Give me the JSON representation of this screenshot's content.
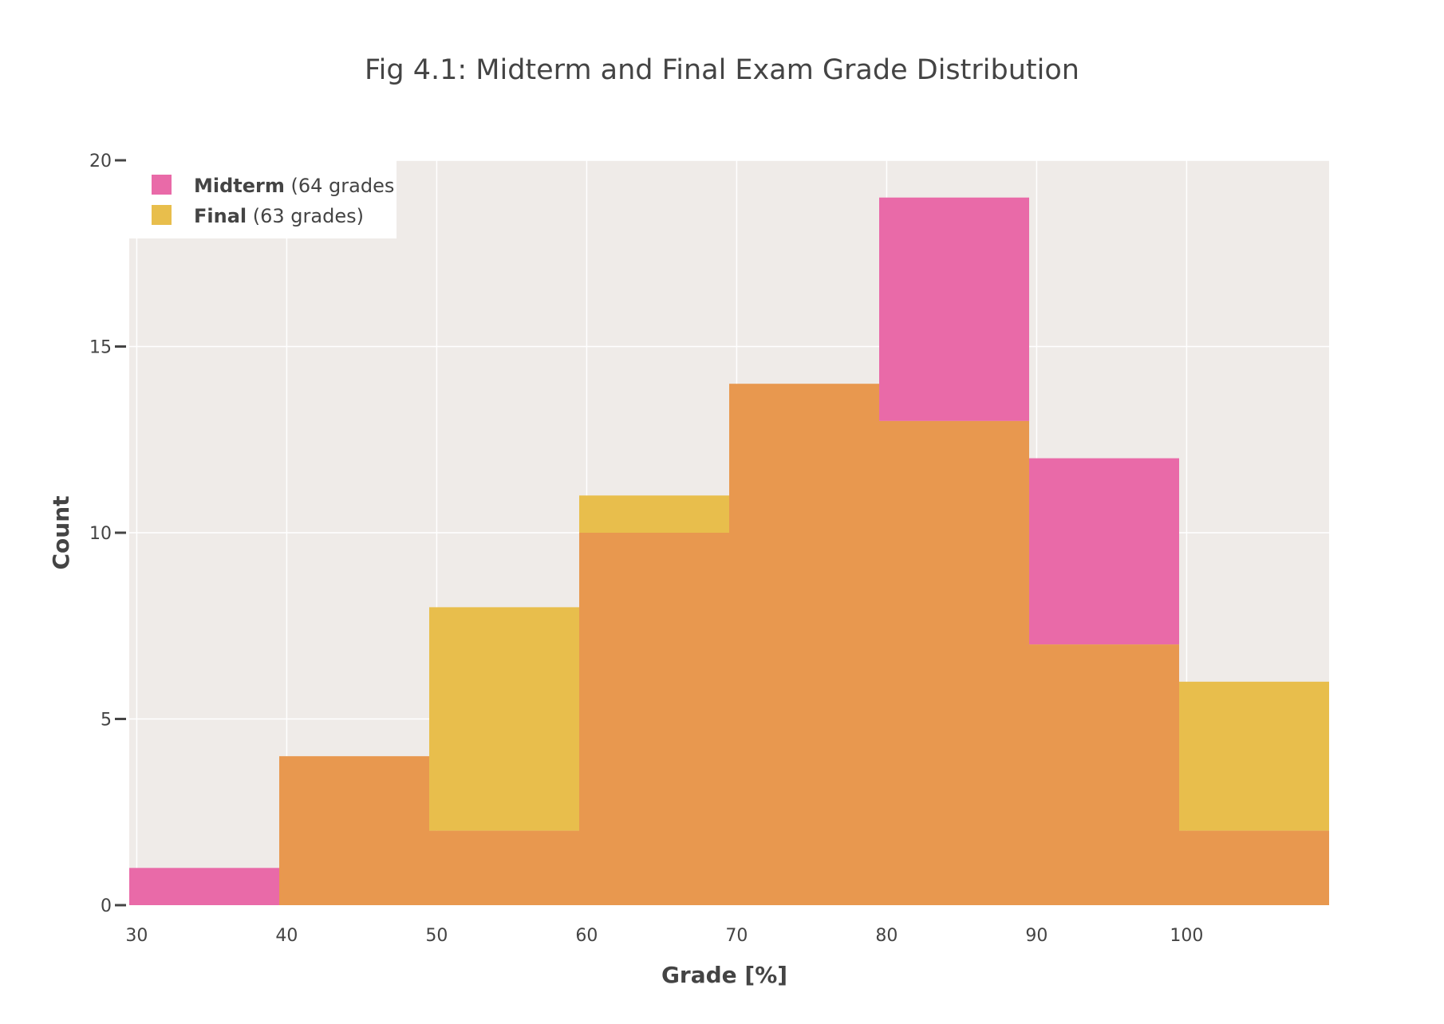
{
  "chart_data": {
    "type": "bar",
    "subtype": "overlaid-histogram",
    "title": "Fig 4.1: Midterm and Final Exam Grade Distribution",
    "xlabel": "Grade [%]",
    "ylabel": "Count",
    "xlim": [
      29.5,
      109.5
    ],
    "ylim": [
      0,
      20
    ],
    "x_ticks": [
      30,
      40,
      50,
      60,
      70,
      80,
      90,
      100
    ],
    "y_ticks": [
      0,
      5,
      10,
      15,
      20
    ],
    "grid": true,
    "legend_position": "top-left",
    "bin_edges": [
      29.5,
      39.5,
      49.5,
      59.5,
      69.5,
      79.5,
      89.5,
      99.5,
      109.5
    ],
    "series": [
      {
        "name": "Midterm",
        "legend_suffix": "(64 grades",
        "color": "#e96aa8",
        "values": [
          1,
          4,
          2,
          10,
          14,
          19,
          12,
          2
        ]
      },
      {
        "name": "Final",
        "legend_suffix": "(63 grades)",
        "color": "#e8be4c",
        "values": [
          0,
          4,
          8,
          11,
          14,
          13,
          7,
          6
        ]
      }
    ],
    "colors": {
      "plot_background": "#efebe8",
      "grid": "#ffffff",
      "overlap": "#e8984f",
      "text": "#444444"
    }
  }
}
